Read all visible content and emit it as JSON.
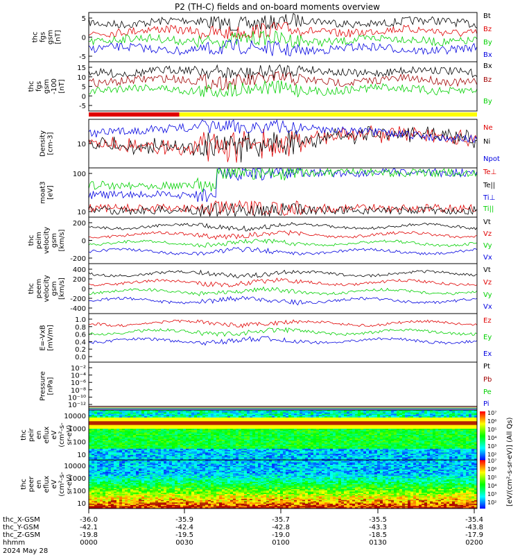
{
  "title": "P2 (TH-C) fields and on-board moments overview",
  "colors": {
    "black": "#000000",
    "red": "#e00000",
    "green": "#00d000",
    "blue": "#0000e0",
    "darkred": "#a00000",
    "yellow": "#ffff00"
  },
  "chart_data": [
    {
      "type": "line",
      "ylabel": [
        "thc",
        "fgs",
        "gsm",
        "[nT]"
      ],
      "yticks": [
        "5",
        "0",
        "-5"
      ],
      "ylim": [
        -9,
        10
      ],
      "series": [
        {
          "name": "Bt",
          "color": "black"
        },
        {
          "name": "Bz",
          "color": "red"
        },
        {
          "name": "By",
          "color": "green"
        },
        {
          "name": "Bx",
          "color": "blue"
        }
      ]
    },
    {
      "type": "line",
      "ylabel": [
        "thc",
        "fgs",
        "gsm",
        "-100",
        "[nT]"
      ],
      "yticks": [
        "15",
        "10",
        "5",
        "0",
        "-5"
      ],
      "ylim": [
        -9,
        18
      ],
      "series": [
        {
          "name": "Bx",
          "color": "black"
        },
        {
          "name": "Bz",
          "color": "darkred"
        },
        {
          "name": "By",
          "color": "green"
        }
      ]
    },
    {
      "type": "bar-strip",
      "segments": [
        {
          "from": -36.0,
          "to": -35.86,
          "color": "red"
        },
        {
          "from": -35.86,
          "to": -35.4,
          "color": "yellow"
        }
      ]
    },
    {
      "type": "line",
      "ylabel": [
        "Density",
        "[cm-3]"
      ],
      "yticks": [
        "10"
      ],
      "yscale": "log",
      "series": [
        {
          "name": "Ne",
          "color": "red"
        },
        {
          "name": "Ni",
          "color": "black"
        },
        {
          "name": "Npot",
          "color": "blue"
        }
      ]
    },
    {
      "type": "line",
      "ylabel": [
        "moat3",
        "[eV]"
      ],
      "yticks": [
        "100",
        "10"
      ],
      "yscale": "log",
      "series": [
        {
          "name": "Te⊥",
          "color": "red"
        },
        {
          "name": "Te||",
          "color": "black"
        },
        {
          "name": "Ti⊥",
          "color": "blue"
        },
        {
          "name": "Ti||",
          "color": "green"
        }
      ]
    },
    {
      "type": "line",
      "ylabel": [
        "thc",
        "peim",
        "velocity",
        "gsm",
        "[km/s]"
      ],
      "yticks": [
        "200",
        "0",
        "-200"
      ],
      "ylim": [
        -300,
        300
      ],
      "series": [
        {
          "name": "Vt",
          "color": "black"
        },
        {
          "name": "Vz",
          "color": "red"
        },
        {
          "name": "Vy",
          "color": "green"
        },
        {
          "name": "Vx",
          "color": "blue"
        }
      ]
    },
    {
      "type": "line",
      "ylabel": [
        "thc",
        "peem",
        "velocity",
        "gsm",
        "[km/s]"
      ],
      "yticks": [
        "400",
        "200",
        "0",
        "-200",
        "-400"
      ],
      "ylim": [
        -450,
        450
      ],
      "series": [
        {
          "name": "Vt",
          "color": "black"
        },
        {
          "name": "Vz",
          "color": "red"
        },
        {
          "name": "Vy",
          "color": "green"
        },
        {
          "name": "Vx",
          "color": "blue"
        }
      ]
    },
    {
      "type": "line",
      "ylabel": [
        "E=-VxB",
        "[mV/m]"
      ],
      "yticks": [
        "1.0",
        "0.8",
        "0.6",
        "0.4",
        "0.2",
        "0.0"
      ],
      "ylim": [
        0,
        1
      ],
      "series": [
        {
          "name": "Ez",
          "color": "red"
        },
        {
          "name": "Ey",
          "color": "green"
        },
        {
          "name": "Ex",
          "color": "blue"
        }
      ]
    },
    {
      "type": "line",
      "ylabel": [
        "Pressure",
        "[nPa]"
      ],
      "yticks": [
        "10⁻²",
        "10⁻⁴",
        "10⁻⁶",
        "10⁻⁸",
        "10⁻¹⁰",
        "10⁻¹²"
      ],
      "yscale": "log",
      "series": [
        {
          "name": "Pt",
          "color": "black"
        },
        {
          "name": "Pb",
          "color": "darkred"
        },
        {
          "name": "Pe",
          "color": "green"
        },
        {
          "name": "Pi",
          "color": "blue"
        }
      ]
    },
    {
      "type": "heatmap",
      "ylabel": [
        "thc",
        "peir",
        "en",
        "eflux",
        "eV",
        "(cm²-s-",
        "sr-eV)"
      ],
      "yticks": [
        "10000",
        "1000",
        "100",
        "10"
      ],
      "yscale": "log"
    },
    {
      "type": "heatmap",
      "ylabel": [
        "thc",
        "peer",
        "en",
        "eflux",
        "eV",
        "(cm²-s-",
        "sr-eV)"
      ],
      "yticks": [
        "10000",
        "1000",
        "100",
        "10"
      ],
      "yscale": "log"
    }
  ],
  "colorbar": {
    "ticks": [
      "10⁷",
      "10⁶",
      "10⁵",
      "10⁴",
      "10³",
      "10²",
      "10⁷",
      "10⁶",
      "10⁵",
      "10⁴",
      "10³",
      "10²"
    ],
    "label": "[eV/(cm²-s-sr-eV)] (All Qs)"
  },
  "xaxis": {
    "rows": [
      {
        "label": "thc_X-GSM",
        "values": [
          "-36.0",
          "-35.9",
          "-35.7",
          "-35.5",
          "-35.4"
        ]
      },
      {
        "label": "thc_Y-GSM",
        "values": [
          "-42.1",
          "-42.4",
          "-42.8",
          "-43.3",
          "-43.8"
        ]
      },
      {
        "label": "thc_Z-GSM",
        "values": [
          "-19.8",
          "-19.5",
          "-19.0",
          "-18.5",
          "-17.9"
        ]
      },
      {
        "label": "hhmm",
        "values": [
          "0000",
          "0030",
          "0100",
          "0130",
          "0200"
        ]
      }
    ],
    "date": "2024 May 28"
  }
}
